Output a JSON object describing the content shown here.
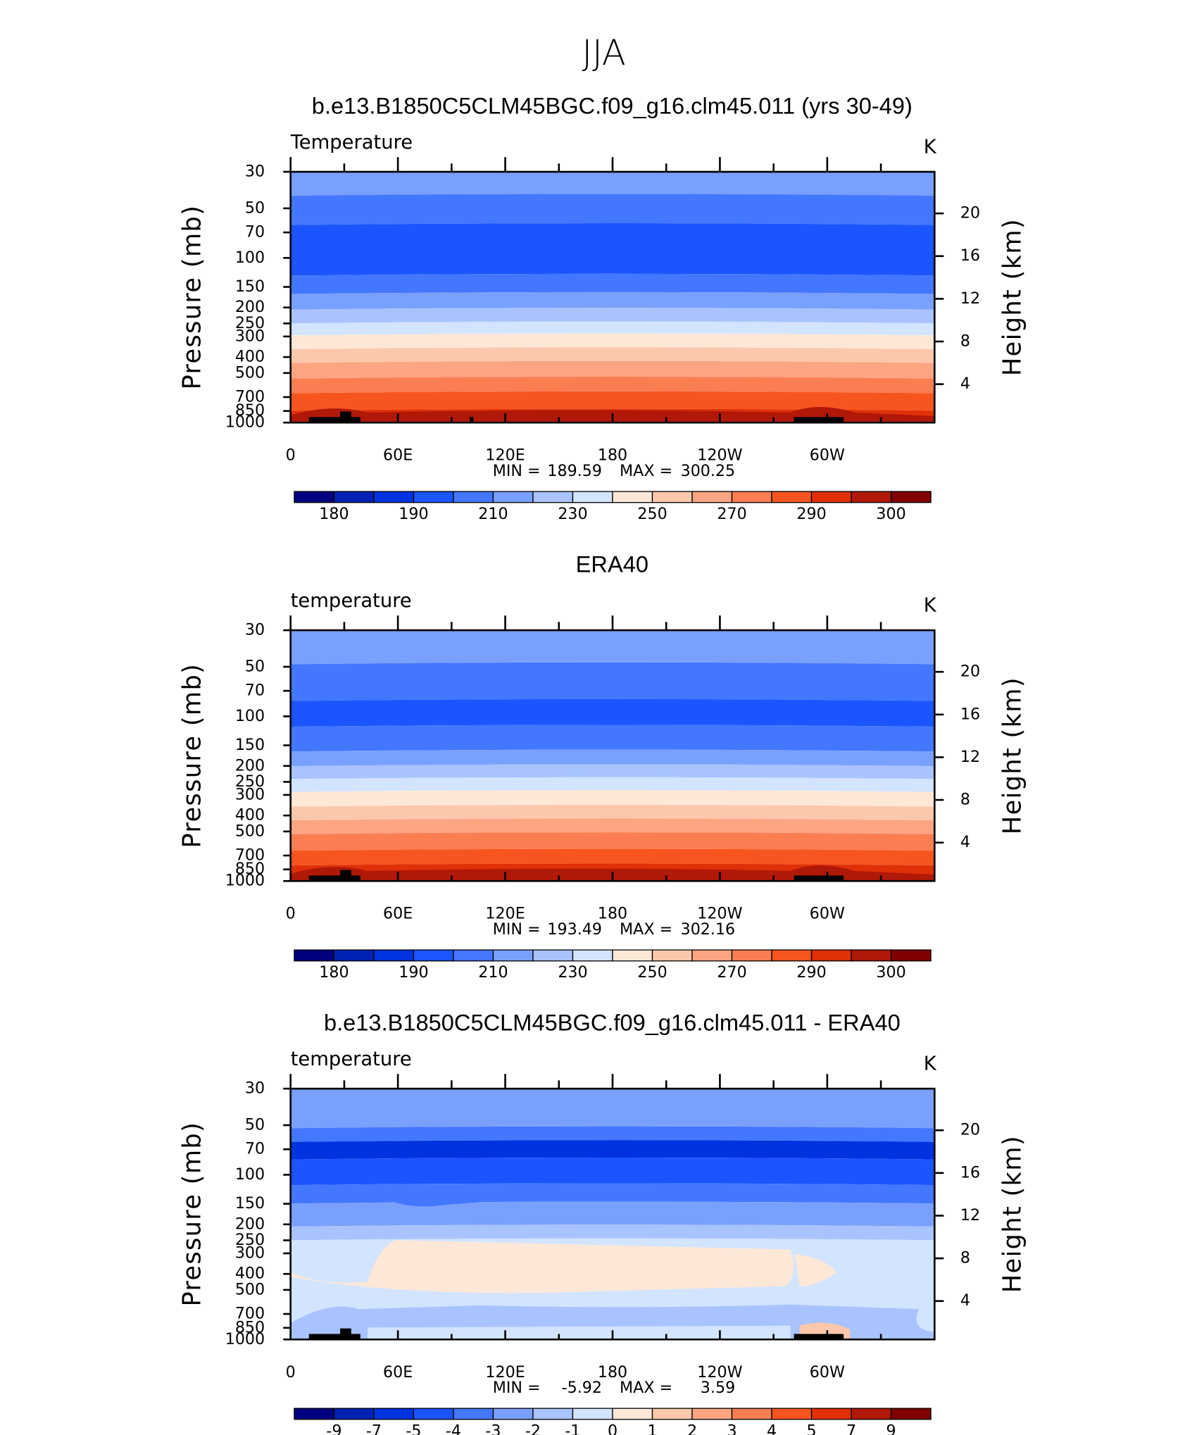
{
  "title": "JJA",
  "chart_data": [
    {
      "type": "contour",
      "title": "b.e13.B1850C5CLM45BGC.f09_g16.clm45.011 (yrs 30-49)",
      "subtitle": "Temperature",
      "units": "K",
      "ylabel": "Pressure (mb)",
      "y2label": "Height (km)",
      "xlim": [
        0,
        360
      ],
      "xticks": [
        0,
        {
          "value": 60,
          "label": "60E"
        },
        {
          "value": 120,
          "label": "120E"
        },
        180,
        {
          "value": 240,
          "label": "120W"
        },
        {
          "value": 300,
          "label": "60W"
        }
      ],
      "xminor_ticks": [
        30,
        90,
        150,
        210,
        270,
        330
      ],
      "ylim": [
        1000,
        30
      ],
      "ylog": true,
      "yticks": [
        30,
        50,
        70,
        100,
        150,
        200,
        250,
        300,
        400,
        500,
        700,
        850,
        1000
      ],
      "y2lim": [
        0.4,
        23.9
      ],
      "y2ticks": [
        4,
        8,
        12,
        16,
        20
      ],
      "min_label": "MIN =",
      "min": 189.59,
      "max_label": "MAX =",
      "max": 300.25,
      "colorbar": {
        "colors": [
          "#00007f",
          "#0022b4",
          "#0033e0",
          "#1a55ff",
          "#4477ff",
          "#7aa0ff",
          "#a8c3ff",
          "#d3e4ff",
          "#fde8d8",
          "#fcc8ac",
          "#fca583",
          "#fb7e52",
          "#f75520",
          "#e03008",
          "#b01808",
          "#800000"
        ],
        "levels": [
          180,
          null,
          190,
          null,
          210,
          null,
          230,
          null,
          250,
          null,
          270,
          null,
          290,
          null,
          300
        ]
      }
    },
    {
      "type": "contour",
      "title": "ERA40",
      "subtitle": "temperature",
      "units": "K",
      "ylabel": "Pressure (mb)",
      "y2label": "Height (km)",
      "xlim": [
        0,
        360
      ],
      "xticks": [
        0,
        {
          "value": 60,
          "label": "60E"
        },
        {
          "value": 120,
          "label": "120E"
        },
        180,
        {
          "value": 240,
          "label": "120W"
        },
        {
          "value": 300,
          "label": "60W"
        }
      ],
      "xminor_ticks": [
        30,
        90,
        150,
        210,
        270,
        330
      ],
      "ylim": [
        1000,
        30
      ],
      "ylog": true,
      "yticks": [
        30,
        50,
        70,
        100,
        150,
        200,
        250,
        300,
        400,
        500,
        700,
        850,
        1000
      ],
      "y2lim": [
        0.4,
        23.9
      ],
      "y2ticks": [
        4,
        8,
        12,
        16,
        20
      ],
      "min_label": "MIN =",
      "min": 193.49,
      "max_label": "MAX =",
      "max": 302.16,
      "colorbar": {
        "colors": [
          "#00007f",
          "#0022b4",
          "#0033e0",
          "#1a55ff",
          "#4477ff",
          "#7aa0ff",
          "#a8c3ff",
          "#d3e4ff",
          "#fde8d8",
          "#fcc8ac",
          "#fca583",
          "#fb7e52",
          "#f75520",
          "#e03008",
          "#b01808",
          "#800000"
        ],
        "levels": [
          180,
          null,
          190,
          null,
          210,
          null,
          230,
          null,
          250,
          null,
          270,
          null,
          290,
          null,
          300
        ]
      }
    },
    {
      "type": "contour",
      "title": "b.e13.B1850C5CLM45BGC.f09_g16.clm45.011 - ERA40",
      "subtitle": "temperature",
      "units": "K",
      "ylabel": "Pressure (mb)",
      "y2label": "Height (km)",
      "xlim": [
        0,
        360
      ],
      "xticks": [
        0,
        {
          "value": 60,
          "label": "60E"
        },
        {
          "value": 120,
          "label": "120E"
        },
        180,
        {
          "value": 240,
          "label": "120W"
        },
        {
          "value": 300,
          "label": "60W"
        }
      ],
      "xminor_ticks": [
        30,
        90,
        150,
        210,
        270,
        330
      ],
      "ylim": [
        1000,
        30
      ],
      "ylog": true,
      "yticks": [
        30,
        50,
        70,
        100,
        150,
        200,
        250,
        300,
        400,
        500,
        700,
        850,
        1000
      ],
      "y2lim": [
        0.4,
        23.9
      ],
      "y2ticks": [
        4,
        8,
        12,
        16,
        20
      ],
      "min_label": "MIN =",
      "min": -5.92,
      "max_label": "MAX =",
      "max": 3.59,
      "colorbar": {
        "colors": [
          "#00007f",
          "#0022b4",
          "#0033e0",
          "#1a55ff",
          "#4477ff",
          "#7aa0ff",
          "#a8c3ff",
          "#d3e4ff",
          "#fde8d8",
          "#fcc8ac",
          "#fca583",
          "#fb7e52",
          "#f75520",
          "#e03008",
          "#b01808",
          "#800000"
        ],
        "levels": [
          -9,
          -7,
          -5,
          -4,
          -3,
          -2,
          -1,
          0,
          1,
          2,
          3,
          4,
          5,
          7,
          9
        ]
      }
    }
  ]
}
